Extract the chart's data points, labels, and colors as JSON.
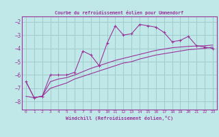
{
  "title": "Courbe du refroidissement éolien pour Ummendorf",
  "xlabel": "Windchill (Refroidissement éolien,°C)",
  "bg_color": "#c0e8e8",
  "grid_color": "#a0cccc",
  "line_color": "#993399",
  "xlim": [
    -0.5,
    23.5
  ],
  "ylim": [
    -8.6,
    -1.6
  ],
  "yticks": [
    -8,
    -7,
    -6,
    -5,
    -4,
    -3,
    -2
  ],
  "xticks": [
    0,
    1,
    2,
    3,
    4,
    5,
    6,
    7,
    8,
    9,
    10,
    11,
    12,
    13,
    14,
    15,
    16,
    17,
    18,
    19,
    20,
    21,
    22,
    23
  ],
  "hours": [
    0,
    1,
    2,
    3,
    4,
    5,
    6,
    7,
    8,
    9,
    10,
    11,
    12,
    13,
    14,
    15,
    16,
    17,
    18,
    19,
    20,
    21,
    22,
    23
  ],
  "windchill": [
    -6.5,
    -7.7,
    -7.6,
    -6.0,
    -6.0,
    -6.0,
    -5.8,
    -4.2,
    -4.5,
    -5.3,
    -3.6,
    -2.3,
    -3.0,
    -2.9,
    -2.2,
    -2.3,
    -2.4,
    -2.8,
    -3.5,
    -3.4,
    -3.1,
    -3.8,
    -3.9,
    -4.0
  ],
  "line2": [
    -7.6,
    -7.7,
    -7.6,
    -7.0,
    -6.8,
    -6.6,
    -6.3,
    -6.1,
    -5.9,
    -5.7,
    -5.5,
    -5.3,
    -5.1,
    -5.0,
    -4.8,
    -4.65,
    -4.5,
    -4.4,
    -4.3,
    -4.2,
    -4.1,
    -4.05,
    -4.0,
    -3.9
  ],
  "line3": [
    -6.5,
    -7.7,
    -7.6,
    -6.5,
    -6.3,
    -6.2,
    -6.0,
    -5.75,
    -5.5,
    -5.3,
    -5.1,
    -4.9,
    -4.75,
    -4.6,
    -4.45,
    -4.3,
    -4.15,
    -4.05,
    -3.95,
    -3.9,
    -3.85,
    -3.82,
    -3.8,
    -3.75
  ]
}
